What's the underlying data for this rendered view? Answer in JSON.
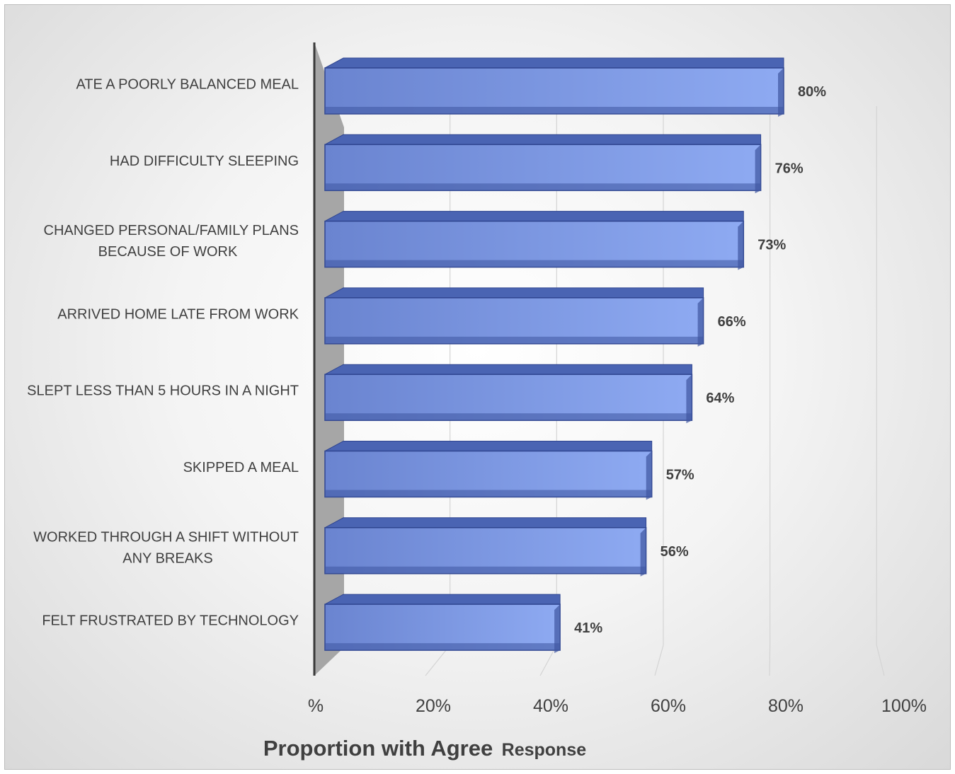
{
  "chart_data": {
    "type": "bar",
    "orientation": "horizontal",
    "categories": [
      [
        "ATE A POORLY BALANCED MEAL"
      ],
      [
        "HAD DIFFICULTY SLEEPING"
      ],
      [
        "CHANGED PERSONAL/FAMILY PLANS",
        "BECAUSE OF WORK"
      ],
      [
        "ARRIVED HOME LATE FROM WORK"
      ],
      [
        "SLEPT LESS THAN 5 HOURS IN A NIGHT"
      ],
      [
        "SKIPPED A MEAL"
      ],
      [
        "WORKED THROUGH A SHIFT WITHOUT",
        "ANY BREAKS"
      ],
      [
        "FELT FRUSTRATED BY TECHNOLOGY"
      ]
    ],
    "values": [
      80,
      76,
      73,
      66,
      64,
      57,
      56,
      41
    ],
    "data_labels": [
      "80%",
      "76%",
      "73%",
      "66%",
      "64%",
      "57%",
      "56%",
      "41%"
    ],
    "x_ticks": [
      "%",
      "20%",
      "40%",
      "60%",
      "80%",
      "100%"
    ],
    "xlim": [
      0,
      100
    ],
    "xlabel_main": "Proportion with Agree",
    "xlabel_suffix": "Response",
    "grid": true,
    "style": "3d",
    "colors": {
      "bar_front": "#6b89d6",
      "bar_top": "#4a64b3",
      "bar_side": "#3e56a0",
      "bar_border": "#2f4590",
      "wall": "#a6a6a6",
      "axis": "#3a3a3a",
      "grid": "#d4d4d4",
      "text": "#404040"
    }
  }
}
